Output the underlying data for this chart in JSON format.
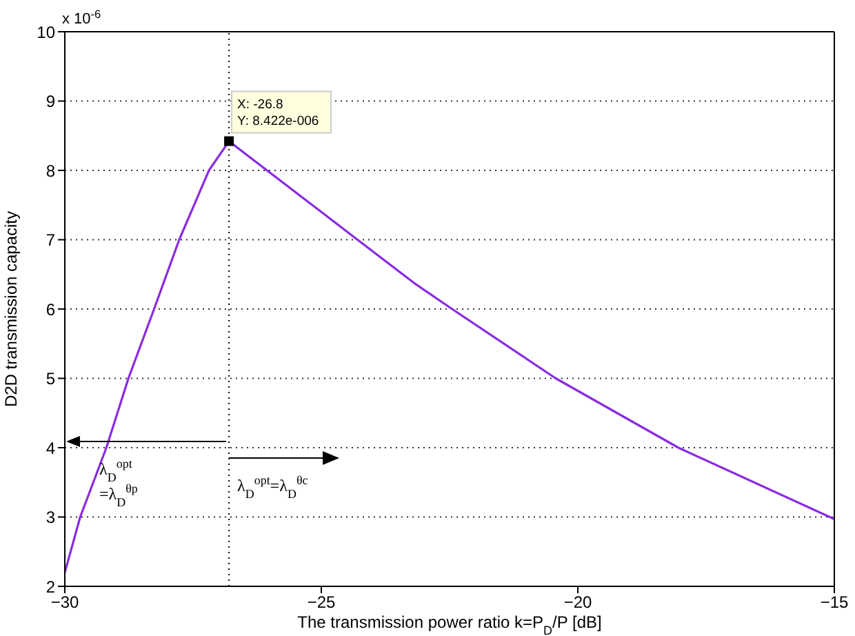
{
  "chart_data": {
    "type": "line",
    "xlabel": "The transmission power ratio k=P$_{D}$/P [dB]",
    "ylabel": "D2D transmission capacity",
    "x": [
      -30,
      -29.7,
      -29.19,
      -28.76,
      -28.26,
      -27.77,
      -27.19,
      -26.8,
      -25,
      -23.2,
      -22.45,
      -20.43,
      -18.04,
      -15
    ],
    "series": [
      {
        "color": "#8a2be2",
        "values": [
          2.2,
          3,
          4,
          5,
          6,
          7,
          8,
          8.42,
          7.4,
          6.38,
          6,
          5,
          4,
          2.97
        ]
      }
    ],
    "xlim": [
      -30,
      -15
    ],
    "xticks": [
      -30,
      -25,
      -20,
      -15
    ],
    "ylim": [
      2,
      10
    ],
    "yticks": [
      2,
      3,
      4,
      5,
      6,
      7,
      8,
      9,
      10
    ],
    "grid": "y",
    "line_style": "solid",
    "ref_lines": [
      {
        "axis": "x",
        "value": -26.8,
        "line_style": "dotted",
        "color": "#000000"
      }
    ],
    "annotations": [
      "x 10$^{-6}$",
      {
        "text": "X: -26.8\nY: 8.422e-006",
        "x": -26.8,
        "y": 8.422
      },
      "λ$_{D}$$^{opt}$\n=λ$_{D}$$^{θp}$",
      "λ$_{D}$$^{opt}$=λ$_{D}$$^{θc}$"
    ]
  }
}
